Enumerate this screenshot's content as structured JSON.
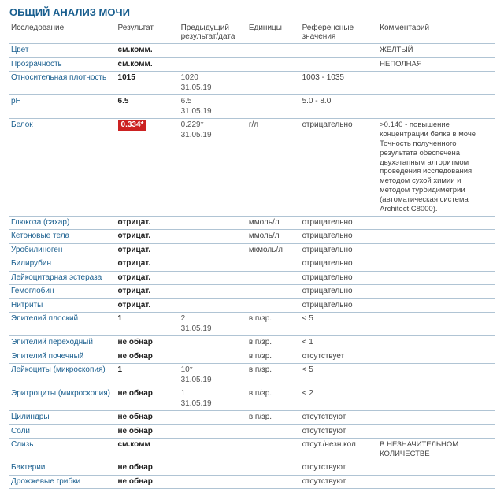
{
  "title": "ОБЩИЙ АНАЛИЗ МОЧИ",
  "headers": {
    "test": "Исследование",
    "result": "Результат",
    "prev": "Предыдущий результат/дата",
    "units": "Единицы",
    "ref": "Референсные значения",
    "comment": "Комментарий"
  },
  "rows": [
    {
      "name": "Цвет",
      "result": "см.комм.",
      "prev": "",
      "units": "",
      "ref": "",
      "comment": "ЖЕЛТЫЙ"
    },
    {
      "name": "Прозрачность",
      "result": "см.комм.",
      "prev": "",
      "units": "",
      "ref": "",
      "comment": "НЕПОЛНАЯ"
    },
    {
      "name": "Относительная плотность",
      "result": "1015",
      "prev": "1020\n31.05.19",
      "units": "",
      "ref": "1003 - 1035",
      "comment": ""
    },
    {
      "name": "pH",
      "result": "6.5",
      "prev": "6.5\n31.05.19",
      "units": "",
      "ref": "5.0 - 8.0",
      "comment": ""
    },
    {
      "name": "Белок",
      "result": "0.334*",
      "highlight": true,
      "prev": "0.229*\n31.05.19",
      "units": "г/л",
      "ref": "отрицательно",
      "comment": ">0.140 - повышение концентрации белка в моче Точность полученного результата обеспечена двухэтапным алгоритмом проведения исследования: методом сухой химии и методом турбидиметрии (автоматическая система Architect C8000)."
    },
    {
      "name": "Глюкоза (сахар)",
      "result": "отрицат.",
      "prev": "",
      "units": "ммоль/л",
      "ref": "отрицательно",
      "comment": ""
    },
    {
      "name": "Кетоновые тела",
      "result": "отрицат.",
      "prev": "",
      "units": "ммоль/л",
      "ref": "отрицательно",
      "comment": ""
    },
    {
      "name": "Уробилиноген",
      "result": "отрицат.",
      "prev": "",
      "units": "мкмоль/л",
      "ref": "отрицательно",
      "comment": ""
    },
    {
      "name": "Билирубин",
      "result": "отрицат.",
      "prev": "",
      "units": "",
      "ref": "отрицательно",
      "comment": ""
    },
    {
      "name": "Лейкоцитарная эстераза",
      "result": "отрицат.",
      "prev": "",
      "units": "",
      "ref": "отрицательно",
      "comment": ""
    },
    {
      "name": "Гемоглобин",
      "result": "отрицат.",
      "prev": "",
      "units": "",
      "ref": "отрицательно",
      "comment": ""
    },
    {
      "name": "Нитриты",
      "result": "отрицат.",
      "prev": "",
      "units": "",
      "ref": "отрицательно",
      "comment": ""
    },
    {
      "name": "Эпителий плоский",
      "result": "1",
      "prev": "2\n31.05.19",
      "units": "в п/зр.",
      "ref": "< 5",
      "comment": ""
    },
    {
      "name": "Эпителий переходный",
      "result": "не обнар",
      "prev": "",
      "units": "в п/зр.",
      "ref": "< 1",
      "comment": ""
    },
    {
      "name": "Эпителий почечный",
      "result": "не обнар",
      "prev": "",
      "units": "в п/зр.",
      "ref": "отсутствует",
      "comment": ""
    },
    {
      "name": "Лейкоциты (микроскопия)",
      "result": "1",
      "prev": "10*\n31.05.19",
      "units": "в п/зр.",
      "ref": "< 5",
      "comment": ""
    },
    {
      "name": "Эритроциты (микроскопия)",
      "result": "не обнар",
      "prev": "1\n31.05.19",
      "units": "в п/зр.",
      "ref": "< 2",
      "comment": ""
    },
    {
      "name": "Цилиндры",
      "result": "не обнар",
      "prev": "",
      "units": "в п/зр.",
      "ref": "отсутствуют",
      "comment": ""
    },
    {
      "name": "Соли",
      "result": "не обнар",
      "prev": "",
      "units": "",
      "ref": "отсутствуют",
      "comment": ""
    },
    {
      "name": "Слизь",
      "result": "см.комм",
      "prev": "",
      "units": "",
      "ref": "отсут./незн.кол",
      "comment": "В НЕЗНАЧИТЕЛЬНОМ КОЛИЧЕСТВЕ"
    },
    {
      "name": "Бактерии",
      "result": "не обнар",
      "prev": "",
      "units": "",
      "ref": "отсутствуют",
      "comment": ""
    },
    {
      "name": "Дрожжевые грибки",
      "result": "не обнар",
      "prev": "",
      "units": "",
      "ref": "отсутствуют",
      "comment": ""
    }
  ],
  "style": {
    "title_color": "#1a5f8f",
    "name_color": "#1a5f8f",
    "border_color": "#b0c4d4",
    "highlight_bg": "#c22",
    "highlight_fg": "#ffffff"
  }
}
